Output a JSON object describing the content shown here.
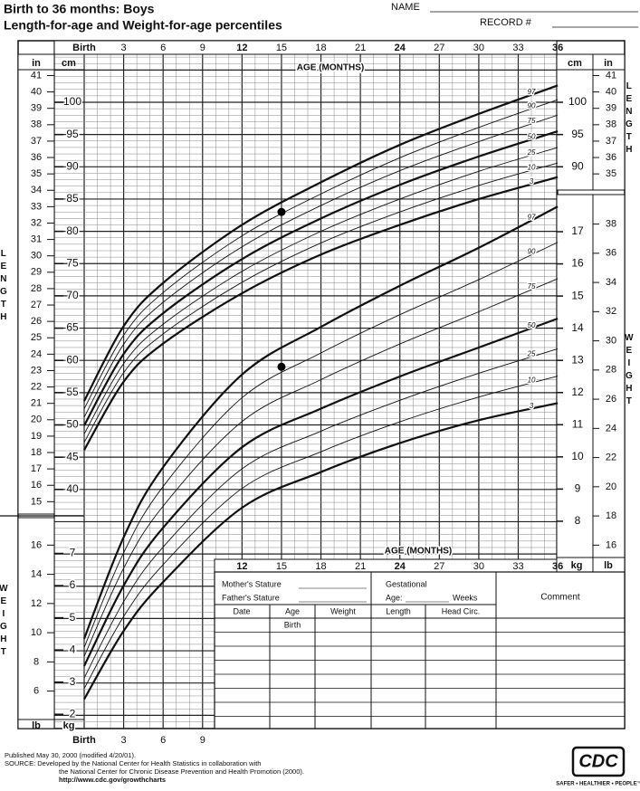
{
  "header": {
    "title": "Birth to 36 months: Boys",
    "subtitle": "Length-for-age and Weight-for-age percentiles",
    "name_label": "NAME",
    "record_label": "RECORD #"
  },
  "age_axis": {
    "label": "AGE (MONTHS)",
    "top_ticks": [
      {
        "value": 0,
        "label": "Birth"
      },
      3,
      6,
      9,
      12,
      15,
      18,
      21,
      24,
      27,
      30,
      33,
      36
    ],
    "middle_ticks": [
      12,
      15,
      18,
      21,
      24,
      27,
      30,
      33,
      36
    ],
    "bottom_ticks": [
      {
        "value": 0,
        "label": "Birth"
      },
      3,
      6,
      9
    ]
  },
  "length": {
    "side_label": "LENGTH",
    "cm_unit": "cm",
    "in_unit": "in",
    "cm_ticks": [
      100,
      95,
      90,
      85,
      80,
      75,
      70,
      65,
      60,
      55,
      50,
      45,
      40
    ],
    "in_ticks": [
      41,
      40,
      39,
      38,
      37,
      36,
      35,
      34,
      33,
      32,
      31,
      30,
      29,
      28,
      27,
      26,
      25,
      24,
      23,
      22,
      21,
      20,
      19,
      18,
      17,
      16,
      15
    ],
    "right_cm_ticks": [
      100,
      95,
      90
    ],
    "right_in_ticks": [
      41,
      40,
      39,
      38,
      37,
      36,
      35
    ],
    "ages": [
      0,
      3,
      6,
      12,
      18,
      24,
      30,
      36
    ],
    "percentiles": [
      {
        "name": "97",
        "values": [
          53.7,
          65.3,
          72.0,
          81.0,
          87.6,
          93.4,
          98.2,
          102.6
        ]
      },
      {
        "name": "90",
        "values": [
          52.5,
          63.9,
          70.5,
          79.3,
          85.8,
          91.4,
          96.1,
          100.4
        ]
      },
      {
        "name": "75",
        "values": [
          51.2,
          62.5,
          69.0,
          77.6,
          84.0,
          89.4,
          93.9,
          98.0
        ]
      },
      {
        "name": "50",
        "values": [
          49.9,
          61.0,
          67.3,
          75.7,
          82.0,
          87.2,
          91.6,
          95.5
        ]
      },
      {
        "name": "25",
        "values": [
          48.6,
          59.5,
          65.6,
          73.8,
          80.0,
          85.0,
          89.3,
          93.0
        ]
      },
      {
        "name": "10",
        "values": [
          47.3,
          58.1,
          64.1,
          72.1,
          78.2,
          83.0,
          87.1,
          90.6
        ]
      },
      {
        "name": "3",
        "values": [
          46.1,
          56.7,
          62.6,
          70.4,
          76.4,
          81.0,
          85.0,
          88.4
        ]
      }
    ],
    "point": {
      "age": 15,
      "value": 83
    }
  },
  "weight": {
    "side_label": "WEIGHT",
    "kg_unit": "kg",
    "lb_unit": "lb",
    "right_kg_ticks": [
      17,
      16,
      15,
      14,
      13,
      12,
      11,
      10,
      9,
      8
    ],
    "right_lb_ticks": [
      38,
      36,
      34,
      32,
      30,
      28,
      26,
      24,
      22,
      20,
      18,
      16
    ],
    "left_kg_ticks": [
      7,
      6,
      5,
      4,
      3,
      2
    ],
    "left_lb_ticks": [
      16,
      14,
      12,
      10,
      8,
      6
    ],
    "ages": [
      0,
      3,
      6,
      12,
      18,
      24,
      30,
      36
    ],
    "percentiles": [
      {
        "name": "97",
        "values": [
          4.35,
          7.5,
          9.68,
          12.56,
          14.04,
          15.32,
          16.5,
          17.78
        ]
      },
      {
        "name": "90",
        "values": [
          4.08,
          7.02,
          9.08,
          11.84,
          13.23,
          14.42,
          15.51,
          16.67
        ]
      },
      {
        "name": "75",
        "values": [
          3.8,
          6.54,
          8.47,
          11.1,
          12.4,
          13.51,
          14.51,
          15.54
        ]
      },
      {
        "name": "50",
        "values": [
          3.5,
          6.0,
          7.8,
          10.3,
          11.5,
          12.5,
          13.4,
          14.3
        ]
      },
      {
        "name": "25",
        "values": [
          3.13,
          5.5,
          7.2,
          9.63,
          10.8,
          11.76,
          12.6,
          13.36
        ]
      },
      {
        "name": "10",
        "values": [
          2.8,
          5.04,
          6.65,
          9.02,
          10.16,
          11.09,
          11.86,
          12.51
        ]
      },
      {
        "name": "3",
        "values": [
          2.47,
          4.59,
          6.11,
          8.42,
          9.53,
          10.43,
          11.14,
          11.67
        ]
      }
    ],
    "point": {
      "age": 15,
      "value": 12.8
    }
  },
  "table": {
    "mother": "Mother's Stature",
    "father": "Father's Stature",
    "gestational": "Gestational",
    "age_label": "Age:",
    "weeks": "Weeks",
    "comment": "Comment",
    "columns": [
      "Date",
      "Age",
      "Weight",
      "Length",
      "Head Circ."
    ],
    "first_row_age": "Birth"
  },
  "footer": {
    "lines": [
      "Published May 30, 2000 (modified 4/20/01).",
      "SOURCE: Developed by the National Center for Health Statistics in collaboration with",
      "the National Center for Chronic Disease Prevention and Health Promotion (2000).",
      "http://www.cdc.gov/growthcharts"
    ]
  },
  "logo": {
    "text": "CDC",
    "tagline": "SAFER • HEALTHIER • PEOPLE™"
  }
}
